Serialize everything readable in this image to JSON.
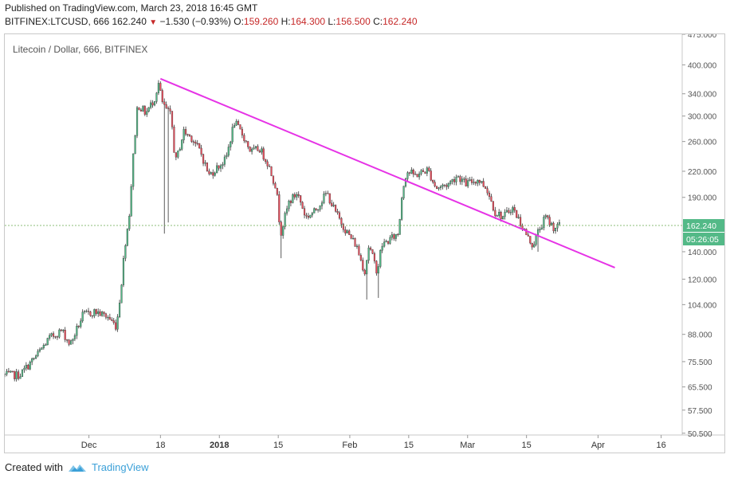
{
  "header": {
    "published": "Published on TradingView.com, March 23, 2018 16:45 GMT",
    "symbol": "BITFINEX:LTCUSD, 666",
    "last": "162.240",
    "change": "−1.530 (−0.93%)",
    "o_label": "O:",
    "o_value": "159.260",
    "h_label": "H:",
    "h_value": "164.300",
    "l_label": "L:",
    "l_value": "156.500",
    "c_label": "C:",
    "c_value": "162.240"
  },
  "footer": {
    "created_with": "Created with",
    "brand": "TradingView"
  },
  "colors": {
    "up": "#53b987",
    "down": "#eb4d5c",
    "trendline": "#e633e6",
    "price_line": "#6aa84f",
    "price_badge": "#53b987",
    "brand": "#3ba0d8"
  },
  "chart_data": {
    "type": "candlestick",
    "title": "Litecoin / Dollar, 666, BITFINEX",
    "y_scale": "log",
    "ylim": [
      50,
      475
    ],
    "y_ticks": [
      "475.000",
      "400.000",
      "340.000",
      "300.000",
      "260.000",
      "220.000",
      "190.000",
      "140.000",
      "120.000",
      "104.000",
      "88.000",
      "75.500",
      "65.500",
      "57.500",
      "50.500"
    ],
    "x_range": [
      "2017-11-11",
      "2018-04-21"
    ],
    "x_ticks": [
      {
        "label": "Dec",
        "date": "2017-12-01"
      },
      {
        "label": "18",
        "date": "2017-12-18"
      },
      {
        "label": "2018",
        "date": "2018-01-01"
      },
      {
        "label": "15",
        "date": "2018-01-15"
      },
      {
        "label": "Feb",
        "date": "2018-02-01"
      },
      {
        "label": "15",
        "date": "2018-02-15"
      },
      {
        "label": "Mar",
        "date": "2018-03-01"
      },
      {
        "label": "15",
        "date": "2018-03-15"
      },
      {
        "label": "Apr",
        "date": "2018-04-01"
      },
      {
        "label": "16",
        "date": "2018-04-16"
      }
    ],
    "current_price": "162.240",
    "countdown": "05:26:05",
    "close_path": [
      {
        "date": "2017-11-11",
        "price": 70
      },
      {
        "date": "2017-11-15",
        "price": 70
      },
      {
        "date": "2017-11-19",
        "price": 78
      },
      {
        "date": "2017-11-22",
        "price": 86
      },
      {
        "date": "2017-11-25",
        "price": 90
      },
      {
        "date": "2017-11-27",
        "price": 83
      },
      {
        "date": "2017-11-30",
        "price": 98
      },
      {
        "date": "2017-12-03",
        "price": 100
      },
      {
        "date": "2017-12-06",
        "price": 97
      },
      {
        "date": "2017-12-08",
        "price": 92
      },
      {
        "date": "2017-12-09",
        "price": 112
      },
      {
        "date": "2017-12-10",
        "price": 145
      },
      {
        "date": "2017-12-11",
        "price": 170
      },
      {
        "date": "2017-12-12",
        "price": 240
      },
      {
        "date": "2017-12-13",
        "price": 320
      },
      {
        "date": "2017-12-15",
        "price": 305
      },
      {
        "date": "2017-12-17",
        "price": 330
      },
      {
        "date": "2017-12-18",
        "price": 360
      },
      {
        "date": "2017-12-19",
        "price": 320
      },
      {
        "date": "2017-12-21",
        "price": 300
      },
      {
        "date": "2017-12-22",
        "price": 230
      },
      {
        "date": "2017-12-24",
        "price": 275
      },
      {
        "date": "2017-12-26",
        "price": 265
      },
      {
        "date": "2017-12-28",
        "price": 245
      },
      {
        "date": "2017-12-30",
        "price": 215
      },
      {
        "date": "2018-01-01",
        "price": 225
      },
      {
        "date": "2018-01-03",
        "price": 235
      },
      {
        "date": "2018-01-05",
        "price": 290
      },
      {
        "date": "2018-01-07",
        "price": 270
      },
      {
        "date": "2018-01-09",
        "price": 245
      },
      {
        "date": "2018-01-11",
        "price": 250
      },
      {
        "date": "2018-01-13",
        "price": 230
      },
      {
        "date": "2018-01-15",
        "price": 200
      },
      {
        "date": "2018-01-16",
        "price": 155
      },
      {
        "date": "2018-01-18",
        "price": 185
      },
      {
        "date": "2018-01-20",
        "price": 195
      },
      {
        "date": "2018-01-22",
        "price": 170
      },
      {
        "date": "2018-01-24",
        "price": 175
      },
      {
        "date": "2018-01-27",
        "price": 195
      },
      {
        "date": "2018-01-29",
        "price": 175
      },
      {
        "date": "2018-02-01",
        "price": 155
      },
      {
        "date": "2018-02-03",
        "price": 145
      },
      {
        "date": "2018-02-05",
        "price": 125
      },
      {
        "date": "2018-02-06",
        "price": 145
      },
      {
        "date": "2018-02-08",
        "price": 125
      },
      {
        "date": "2018-02-09",
        "price": 145
      },
      {
        "date": "2018-02-11",
        "price": 150
      },
      {
        "date": "2018-02-13",
        "price": 155
      },
      {
        "date": "2018-02-14",
        "price": 200
      },
      {
        "date": "2018-02-15",
        "price": 220
      },
      {
        "date": "2018-02-17",
        "price": 215
      },
      {
        "date": "2018-02-20",
        "price": 222
      },
      {
        "date": "2018-02-22",
        "price": 200
      },
      {
        "date": "2018-02-25",
        "price": 205
      },
      {
        "date": "2018-02-27",
        "price": 215
      },
      {
        "date": "2018-03-01",
        "price": 205
      },
      {
        "date": "2018-03-04",
        "price": 210
      },
      {
        "date": "2018-03-06",
        "price": 200
      },
      {
        "date": "2018-03-08",
        "price": 175
      },
      {
        "date": "2018-03-10",
        "price": 170
      },
      {
        "date": "2018-03-12",
        "price": 180
      },
      {
        "date": "2018-03-14",
        "price": 165
      },
      {
        "date": "2018-03-16",
        "price": 150
      },
      {
        "date": "2018-03-17",
        "price": 145
      },
      {
        "date": "2018-03-18",
        "price": 155
      },
      {
        "date": "2018-03-20",
        "price": 170
      },
      {
        "date": "2018-03-22",
        "price": 160
      },
      {
        "date": "2018-03-23",
        "price": 162
      }
    ],
    "wick_spikes": [
      {
        "date": "2017-12-20",
        "low": 165
      },
      {
        "date": "2017-12-19",
        "low": 155
      },
      {
        "date": "2018-01-16",
        "low": 135
      },
      {
        "date": "2018-02-05",
        "low": 107
      },
      {
        "date": "2018-02-08",
        "low": 108
      },
      {
        "date": "2018-03-18",
        "low": 140
      }
    ],
    "trendline": [
      {
        "date": "2017-12-18",
        "price": 370
      },
      {
        "date": "2018-04-05",
        "price": 128
      }
    ]
  }
}
